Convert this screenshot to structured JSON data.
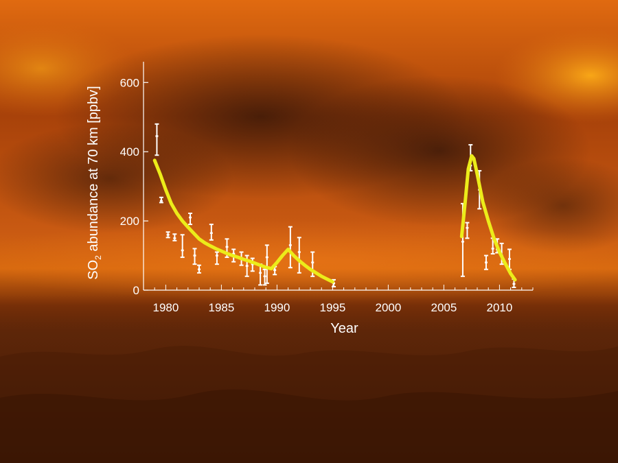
{
  "chart_data": {
    "type": "line",
    "title": "",
    "xlabel": "Year",
    "ylabel": {
      "prefix": "SO",
      "subscript": "2",
      "suffix": " abundance at 70 km [ppbv]"
    },
    "xlim": [
      1978,
      2013
    ],
    "ylim": [
      0,
      660
    ],
    "x_ticks": [
      1980,
      1985,
      1990,
      1995,
      2000,
      2005,
      2010
    ],
    "y_ticks": [
      0,
      200,
      400,
      600
    ],
    "grid": false,
    "series": [
      {
        "kind": "errorbar",
        "color": "#ffffff",
        "points": [
          {
            "x": 1979.2,
            "y": 445,
            "lo": 390,
            "hi": 480
          },
          {
            "x": 1979.6,
            "y": 258,
            "lo": 253,
            "hi": 268
          },
          {
            "x": 1980.2,
            "y": 160,
            "lo": 152,
            "hi": 168
          },
          {
            "x": 1980.8,
            "y": 150,
            "lo": 143,
            "hi": 162
          },
          {
            "x": 1981.5,
            "y": 115,
            "lo": 95,
            "hi": 160
          },
          {
            "x": 1982.2,
            "y": 210,
            "lo": 190,
            "hi": 222
          },
          {
            "x": 1982.6,
            "y": 100,
            "lo": 75,
            "hi": 120
          },
          {
            "x": 1983.0,
            "y": 60,
            "lo": 50,
            "hi": 72
          },
          {
            "x": 1984.1,
            "y": 165,
            "lo": 145,
            "hi": 190
          },
          {
            "x": 1984.6,
            "y": 100,
            "lo": 75,
            "hi": 110
          },
          {
            "x": 1985.5,
            "y": 125,
            "lo": 95,
            "hi": 148
          },
          {
            "x": 1986.1,
            "y": 105,
            "lo": 82,
            "hi": 118
          },
          {
            "x": 1986.8,
            "y": 90,
            "lo": 72,
            "hi": 110
          },
          {
            "x": 1987.3,
            "y": 70,
            "lo": 40,
            "hi": 100
          },
          {
            "x": 1987.8,
            "y": 75,
            "lo": 55,
            "hi": 92
          },
          {
            "x": 1988.5,
            "y": 50,
            "lo": 15,
            "hi": 75
          },
          {
            "x": 1988.9,
            "y": 40,
            "lo": 15,
            "hi": 60
          },
          {
            "x": 1989.1,
            "y": 95,
            "lo": 20,
            "hi": 130
          },
          {
            "x": 1989.8,
            "y": 58,
            "lo": 45,
            "hi": 68
          },
          {
            "x": 1991.2,
            "y": 130,
            "lo": 65,
            "hi": 183
          },
          {
            "x": 1992.0,
            "y": 110,
            "lo": 50,
            "hi": 152
          },
          {
            "x": 1993.2,
            "y": 80,
            "lo": 40,
            "hi": 110
          },
          {
            "x": 1995.1,
            "y": 20,
            "lo": 10,
            "hi": 30
          },
          {
            "x": 2006.7,
            "y": 140,
            "lo": 40,
            "hi": 250
          },
          {
            "x": 2007.1,
            "y": 180,
            "lo": 150,
            "hi": 195
          },
          {
            "x": 2007.4,
            "y": 360,
            "lo": 345,
            "hi": 420
          },
          {
            "x": 2008.2,
            "y": 290,
            "lo": 235,
            "hi": 345
          },
          {
            "x": 2008.8,
            "y": 80,
            "lo": 60,
            "hi": 100
          },
          {
            "x": 2009.4,
            "y": 120,
            "lo": 105,
            "hi": 150
          },
          {
            "x": 2009.8,
            "y": 118,
            "lo": 108,
            "hi": 148
          },
          {
            "x": 2010.2,
            "y": 100,
            "lo": 75,
            "hi": 135
          },
          {
            "x": 2010.9,
            "y": 90,
            "lo": 60,
            "hi": 118
          },
          {
            "x": 2011.3,
            "y": 18,
            "lo": 8,
            "hi": 32
          }
        ]
      },
      {
        "kind": "line",
        "color": "#ecec1a",
        "segments": [
          [
            [
              1979.0,
              375
            ],
            [
              1979.5,
              335
            ],
            [
              1980.0,
              290
            ],
            [
              1980.5,
              250
            ],
            [
              1981.0,
              222
            ],
            [
              1981.5,
              200
            ],
            [
              1982.0,
              182
            ],
            [
              1982.5,
              165
            ],
            [
              1983.0,
              148
            ],
            [
              1983.5,
              137
            ],
            [
              1984.0,
              128
            ],
            [
              1984.5,
              120
            ],
            [
              1985.0,
              113
            ],
            [
              1985.5,
              106
            ],
            [
              1986.0,
              100
            ],
            [
              1986.5,
              95
            ],
            [
              1987.0,
              89
            ],
            [
              1987.5,
              84
            ],
            [
              1988.0,
              78
            ],
            [
              1988.5,
              72
            ],
            [
              1989.0,
              66
            ],
            [
              1989.5,
              62
            ],
            [
              1990.0,
              80
            ],
            [
              1990.5,
              100
            ],
            [
              1991.0,
              118
            ],
            [
              1991.5,
              100
            ],
            [
              1992.0,
              85
            ],
            [
              1992.5,
              72
            ],
            [
              1993.0,
              60
            ],
            [
              1993.5,
              50
            ],
            [
              1994.0,
              40
            ],
            [
              1994.5,
              32
            ],
            [
              1995.0,
              24
            ]
          ],
          [
            [
              2006.6,
              155
            ],
            [
              2006.9,
              250
            ],
            [
              2007.2,
              350
            ],
            [
              2007.5,
              388
            ],
            [
              2007.7,
              380
            ],
            [
              2008.0,
              335
            ],
            [
              2008.5,
              255
            ],
            [
              2009.0,
              200
            ],
            [
              2009.5,
              150
            ],
            [
              2010.0,
              110
            ],
            [
              2010.5,
              78
            ],
            [
              2011.0,
              48
            ],
            [
              2011.4,
              30
            ]
          ]
        ]
      }
    ]
  }
}
